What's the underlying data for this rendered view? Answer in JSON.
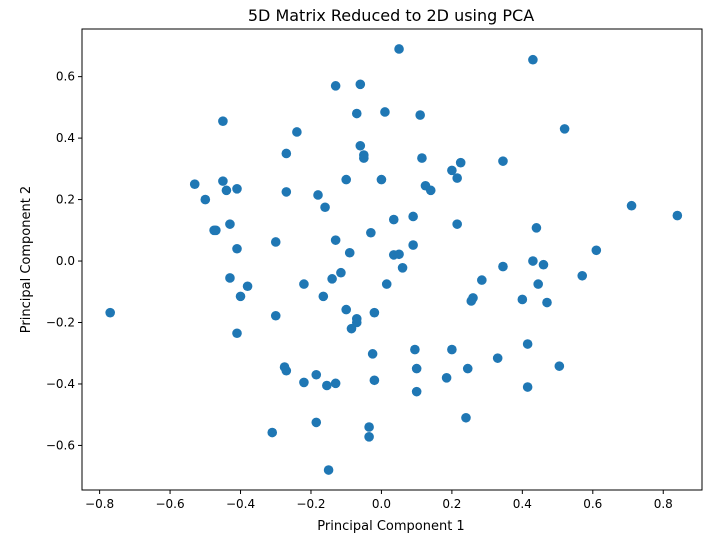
{
  "chart_data": {
    "type": "scatter",
    "title": "5D Matrix Reduced to 2D using PCA",
    "xlabel": "Principal Component 1",
    "ylabel": "Principal Component 2",
    "xlim": [
      -0.85,
      0.91
    ],
    "ylim": [
      -0.745,
      0.755
    ],
    "xticks": [
      -0.8,
      -0.6,
      -0.4,
      -0.2,
      0.0,
      0.2,
      0.4,
      0.6,
      0.8
    ],
    "xtick_labels": [
      "−0.8",
      "−0.6",
      "−0.4",
      "−0.2",
      "0.0",
      "0.2",
      "0.4",
      "0.6",
      "0.8"
    ],
    "yticks": [
      -0.6,
      -0.4,
      -0.2,
      0.0,
      0.2,
      0.4,
      0.6
    ],
    "ytick_labels": [
      "−0.6",
      "−0.4",
      "−0.2",
      "0.0",
      "0.2",
      "0.4",
      "0.6"
    ],
    "grid": false,
    "marker_color": "#1f77b4",
    "points": [
      [
        0.05,
        0.69
      ],
      [
        0.43,
        0.655
      ],
      [
        -0.13,
        0.57
      ],
      [
        -0.06,
        0.575
      ],
      [
        -0.07,
        0.48
      ],
      [
        0.01,
        0.485
      ],
      [
        0.11,
        0.475
      ],
      [
        0.52,
        0.43
      ],
      [
        -0.45,
        0.455
      ],
      [
        -0.24,
        0.42
      ],
      [
        -0.06,
        0.375
      ],
      [
        -0.27,
        0.35
      ],
      [
        -0.05,
        0.345
      ],
      [
        -0.05,
        0.335
      ],
      [
        0.115,
        0.335
      ],
      [
        0.225,
        0.32
      ],
      [
        0.345,
        0.325
      ],
      [
        0.2,
        0.295
      ],
      [
        0.215,
        0.27
      ],
      [
        -0.1,
        0.265
      ],
      [
        0.0,
        0.265
      ],
      [
        -0.53,
        0.25
      ],
      [
        -0.45,
        0.26
      ],
      [
        -0.41,
        0.235
      ],
      [
        -0.44,
        0.23
      ],
      [
        0.125,
        0.245
      ],
      [
        0.14,
        0.23
      ],
      [
        -0.27,
        0.225
      ],
      [
        -0.18,
        0.215
      ],
      [
        -0.5,
        0.2
      ],
      [
        0.71,
        0.18
      ],
      [
        -0.16,
        0.175
      ],
      [
        0.84,
        0.148
      ],
      [
        0.09,
        0.145
      ],
      [
        0.035,
        0.135
      ],
      [
        -0.43,
        0.12
      ],
      [
        0.215,
        0.12
      ],
      [
        -0.47,
        0.1
      ],
      [
        -0.475,
        0.1
      ],
      [
        0.44,
        0.108
      ],
      [
        -0.03,
        0.092
      ],
      [
        -0.13,
        0.068
      ],
      [
        -0.3,
        0.062
      ],
      [
        0.09,
        0.052
      ],
      [
        -0.41,
        0.04
      ],
      [
        0.61,
        0.035
      ],
      [
        -0.09,
        0.027
      ],
      [
        0.035,
        0.02
      ],
      [
        0.05,
        0.022
      ],
      [
        0.43,
        0.0
      ],
      [
        0.46,
        -0.012
      ],
      [
        0.345,
        -0.018
      ],
      [
        0.06,
        -0.022
      ],
      [
        -0.115,
        -0.038
      ],
      [
        -0.43,
        -0.055
      ],
      [
        -0.14,
        -0.058
      ],
      [
        0.57,
        -0.048
      ],
      [
        0.285,
        -0.062
      ],
      [
        -0.38,
        -0.082
      ],
      [
        -0.22,
        -0.075
      ],
      [
        0.015,
        -0.075
      ],
      [
        0.445,
        -0.075
      ],
      [
        -0.4,
        -0.115
      ],
      [
        -0.165,
        -0.115
      ],
      [
        0.26,
        -0.12
      ],
      [
        0.255,
        -0.13
      ],
      [
        0.4,
        -0.125
      ],
      [
        0.47,
        -0.135
      ],
      [
        -0.1,
        -0.158
      ],
      [
        -0.02,
        -0.168
      ],
      [
        -0.77,
        -0.168
      ],
      [
        -0.3,
        -0.178
      ],
      [
        -0.07,
        -0.188
      ],
      [
        -0.07,
        -0.2
      ],
      [
        -0.085,
        -0.22
      ],
      [
        -0.41,
        -0.235
      ],
      [
        0.415,
        -0.27
      ],
      [
        0.095,
        -0.288
      ],
      [
        0.2,
        -0.288
      ],
      [
        -0.025,
        -0.302
      ],
      [
        0.33,
        -0.316
      ],
      [
        0.505,
        -0.342
      ],
      [
        -0.275,
        -0.345
      ],
      [
        -0.27,
        -0.357
      ],
      [
        0.1,
        -0.35
      ],
      [
        0.245,
        -0.35
      ],
      [
        -0.185,
        -0.37
      ],
      [
        0.185,
        -0.38
      ],
      [
        -0.02,
        -0.388
      ],
      [
        -0.22,
        -0.395
      ],
      [
        -0.13,
        -0.398
      ],
      [
        -0.155,
        -0.405
      ],
      [
        0.415,
        -0.41
      ],
      [
        0.1,
        -0.425
      ],
      [
        0.24,
        -0.51
      ],
      [
        -0.185,
        -0.525
      ],
      [
        -0.035,
        -0.54
      ],
      [
        -0.31,
        -0.558
      ],
      [
        -0.035,
        -0.572
      ],
      [
        -0.15,
        -0.68
      ]
    ]
  }
}
